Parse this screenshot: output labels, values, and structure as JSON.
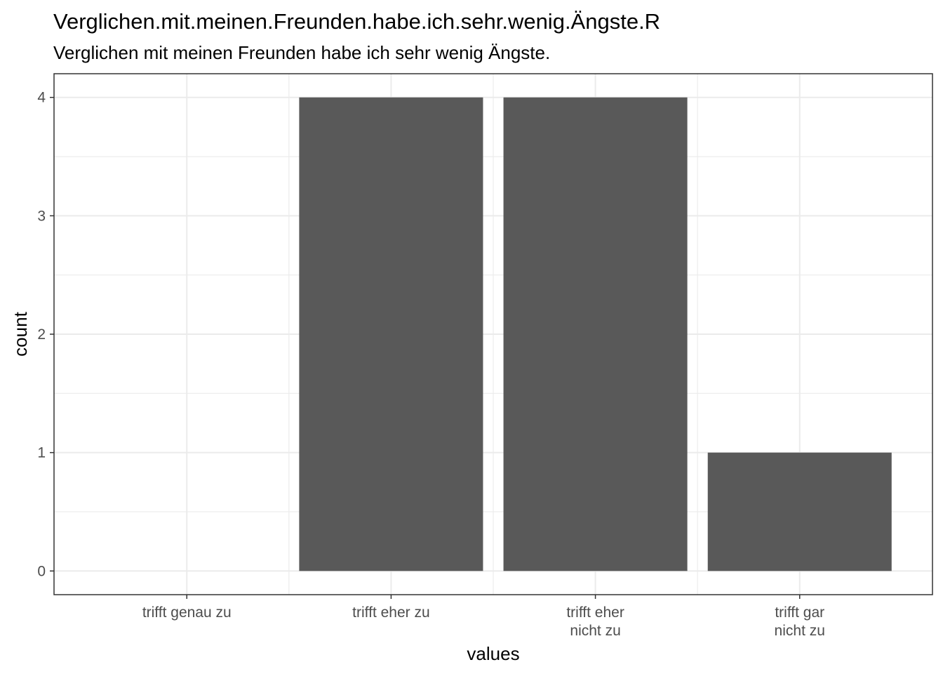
{
  "chart_data": {
    "type": "bar",
    "title": "Verglichen.mit.meinen.Freunden.habe.ich.sehr.wenig.Ängste.R",
    "subtitle": "Verglichen mit meinen Freunden habe ich sehr wenig Ängste.",
    "xlabel": "values",
    "ylabel": "count",
    "categories": [
      [
        "trifft genau zu"
      ],
      [
        "trifft eher zu"
      ],
      [
        "trifft eher",
        "nicht zu"
      ],
      [
        "trifft gar",
        "nicht zu"
      ]
    ],
    "values": [
      0,
      4,
      4,
      1
    ],
    "ylim": [
      -0.2,
      4.2
    ],
    "yticks": [
      "0",
      "1",
      "2",
      "3",
      "4"
    ],
    "grid": true,
    "bar_color": "#595959",
    "grid_color": "#ebebeb",
    "panel_border_color": "#333333",
    "tick_color": "#4d4d4d"
  }
}
